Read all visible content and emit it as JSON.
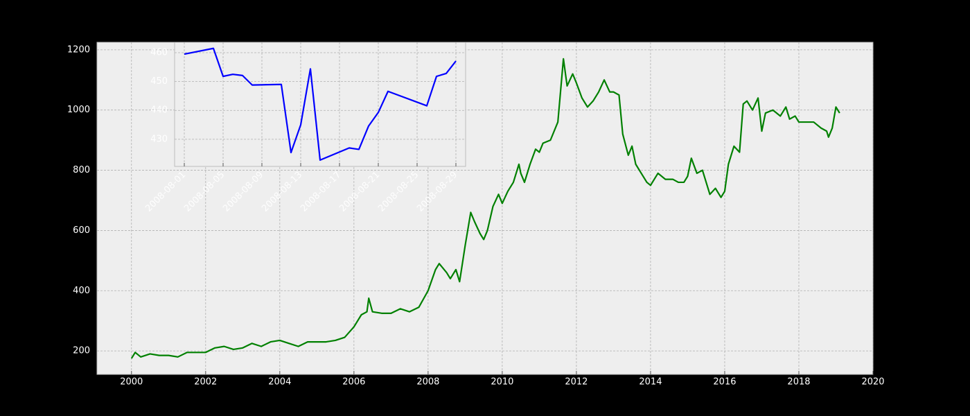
{
  "chart_data": [
    {
      "type": "line",
      "color": "#008000",
      "grid": true,
      "x": [
        2000.0,
        2000.1,
        2000.25,
        2000.5,
        2000.75,
        2001.0,
        2001.25,
        2001.5,
        2001.75,
        2002.0,
        2002.25,
        2002.5,
        2002.75,
        2003.0,
        2003.25,
        2003.5,
        2003.75,
        2004.0,
        2004.25,
        2004.5,
        2004.75,
        2005.0,
        2005.25,
        2005.5,
        2005.75,
        2006.0,
        2006.2,
        2006.35,
        2006.4,
        2006.5,
        2006.75,
        2007.0,
        2007.25,
        2007.5,
        2007.75,
        2008.0,
        2008.2,
        2008.3,
        2008.5,
        2008.6,
        2008.75,
        2008.85,
        2009.0,
        2009.15,
        2009.25,
        2009.4,
        2009.5,
        2009.6,
        2009.75,
        2009.9,
        2010.0,
        2010.15,
        2010.3,
        2010.45,
        2010.5,
        2010.6,
        2010.75,
        2010.9,
        2011.0,
        2011.1,
        2011.3,
        2011.5,
        2011.65,
        2011.75,
        2011.9,
        2012.0,
        2012.15,
        2012.3,
        2012.45,
        2012.6,
        2012.75,
        2012.9,
        2013.0,
        2013.15,
        2013.25,
        2013.4,
        2013.5,
        2013.6,
        2013.75,
        2013.9,
        2014.0,
        2014.2,
        2014.4,
        2014.6,
        2014.75,
        2014.9,
        2015.0,
        2015.1,
        2015.25,
        2015.4,
        2015.5,
        2015.6,
        2015.75,
        2015.9,
        2016.0,
        2016.1,
        2016.25,
        2016.4,
        2016.5,
        2016.6,
        2016.75,
        2016.9,
        2017.0,
        2017.1,
        2017.3,
        2017.5,
        2017.65,
        2017.75,
        2017.9,
        2018.0,
        2018.2,
        2018.4,
        2018.6,
        2018.75,
        2018.8,
        2018.9,
        2019.0,
        2019.1
      ],
      "values": [
        175,
        195,
        180,
        190,
        185,
        185,
        180,
        195,
        195,
        195,
        210,
        215,
        205,
        210,
        225,
        215,
        230,
        235,
        225,
        215,
        230,
        230,
        230,
        235,
        245,
        280,
        320,
        330,
        375,
        330,
        325,
        325,
        340,
        330,
        345,
        400,
        470,
        490,
        460,
        440,
        470,
        430,
        550,
        660,
        630,
        590,
        570,
        600,
        680,
        720,
        690,
        730,
        760,
        820,
        790,
        760,
        820,
        870,
        860,
        890,
        900,
        960,
        1170,
        1080,
        1120,
        1090,
        1040,
        1010,
        1030,
        1060,
        1100,
        1060,
        1060,
        1050,
        920,
        850,
        880,
        820,
        790,
        760,
        750,
        790,
        770,
        770,
        760,
        760,
        780,
        840,
        790,
        800,
        760,
        720,
        740,
        710,
        730,
        820,
        880,
        860,
        1020,
        1030,
        1000,
        1040,
        930,
        990,
        1000,
        980,
        1010,
        970,
        980,
        960,
        960,
        960,
        940,
        930,
        910,
        940,
        1010,
        990
      ],
      "xlim": [
        1999.07,
        2020
      ],
      "xticks": [
        2000,
        2002,
        2004,
        2006,
        2008,
        2010,
        2012,
        2014,
        2016,
        2018,
        2020
      ],
      "ylim": [
        122,
        1225
      ],
      "yticks": [
        200,
        400,
        600,
        800,
        1000,
        1200
      ]
    },
    {
      "type": "line",
      "color": "#0000ff",
      "grid": true,
      "x": [
        "2008-08-01",
        "2008-08-04",
        "2008-08-05",
        "2008-08-06",
        "2008-08-07",
        "2008-08-08",
        "2008-08-11",
        "2008-08-12",
        "2008-08-13",
        "2008-08-14",
        "2008-08-15",
        "2008-08-18",
        "2008-08-19",
        "2008-08-20",
        "2008-08-21",
        "2008-08-22",
        "2008-08-26",
        "2008-08-27",
        "2008-08-28",
        "2008-08-29"
      ],
      "values": [
        459.5,
        461.5,
        451.8,
        452.5,
        452.1,
        448.8,
        449.0,
        425.4,
        435.0,
        454.4,
        422.8,
        427.0,
        426.5,
        434.6,
        439.3,
        446.6,
        441.6,
        451.8,
        452.8,
        457.1
      ],
      "xlim": [
        "2008-07-31",
        "2008-08-30"
      ],
      "xticks": [
        "2008-08-01",
        "2008-08-05",
        "2008-08-09",
        "2008-08-13",
        "2008-08-17",
        "2008-08-21",
        "2008-08-25",
        "2008-08-29"
      ],
      "ylim": [
        420.6,
        463.6
      ],
      "yticks": [
        430,
        440,
        450,
        460
      ]
    }
  ]
}
